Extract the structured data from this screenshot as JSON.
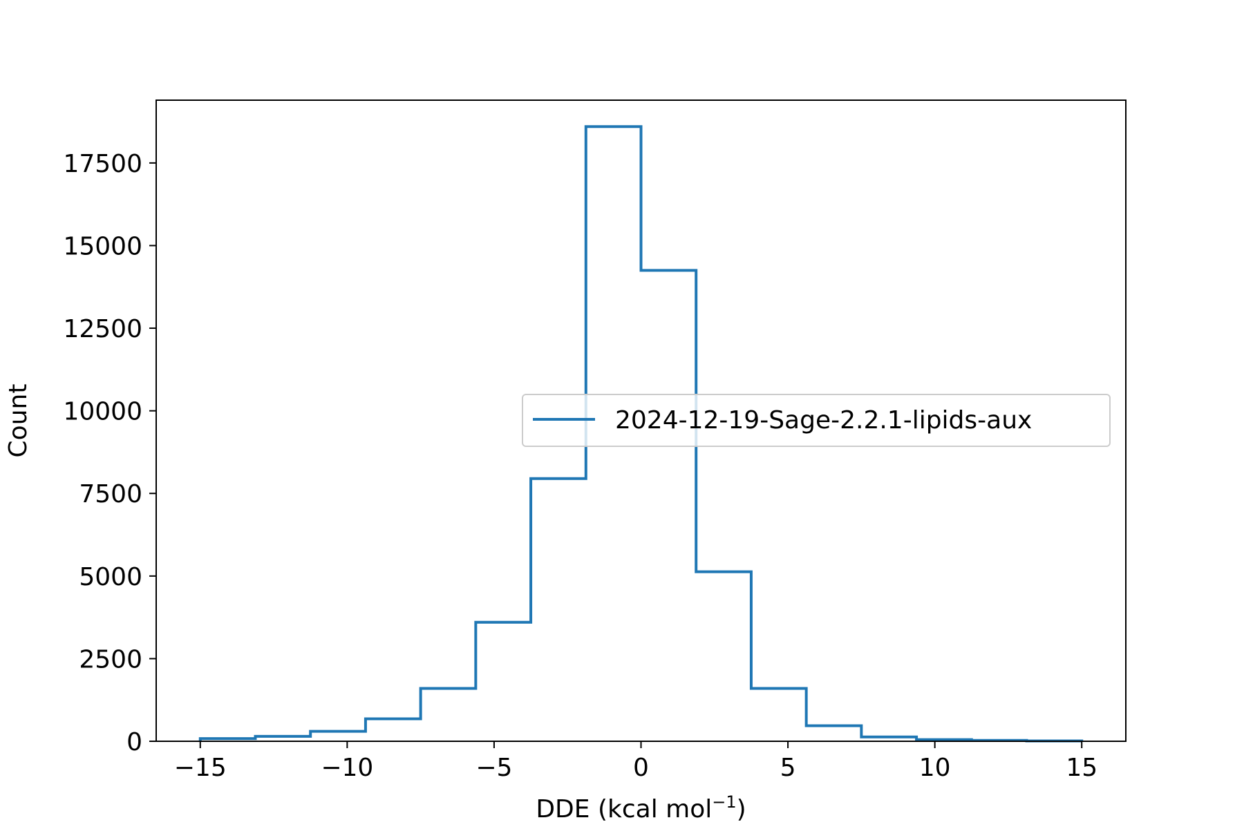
{
  "chart_data": {
    "type": "histogram",
    "xlabel": "DDE (kcal mol",
    "xlabel_superscript": "−1",
    "xlabel_suffix": ")",
    "ylabel": "Count",
    "xlim": [
      -16.5,
      16.5
    ],
    "ylim": [
      0,
      19400
    ],
    "x_ticks": [
      -15,
      -10,
      -5,
      0,
      5,
      10,
      15
    ],
    "x_tick_labels": [
      "−15",
      "−10",
      "−5",
      "0",
      "5",
      "10",
      "15"
    ],
    "y_ticks": [
      0,
      2500,
      5000,
      7500,
      10000,
      12500,
      15000,
      17500
    ],
    "y_tick_labels": [
      "0",
      "2500",
      "5000",
      "7500",
      "10000",
      "12500",
      "15000",
      "17500"
    ],
    "grid": false,
    "legend_position": "center-right",
    "bin_edges": [
      -15,
      -13.125,
      -11.25,
      -9.375,
      -7.5,
      -5.625,
      -3.75,
      -1.875,
      0,
      1.875,
      3.75,
      5.625,
      7.5,
      9.375,
      11.25,
      13.125,
      15
    ],
    "series": [
      {
        "name": "2024-12-19-Sage-2.2.1-lipids-aux",
        "color": "#1f77b4",
        "counts": [
          80,
          150,
          300,
          680,
          1600,
          3600,
          7950,
          18600,
          14250,
          5130,
          1600,
          470,
          130,
          50,
          25,
          10
        ]
      }
    ]
  }
}
